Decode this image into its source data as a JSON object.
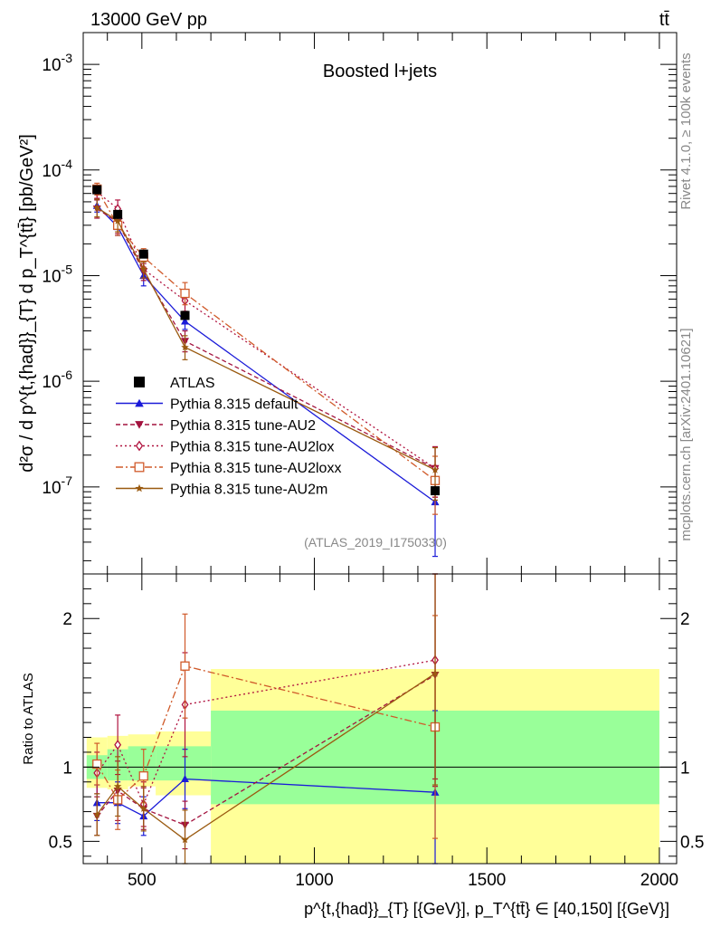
{
  "header": {
    "left": "13000 GeV pp",
    "right": "tt̄"
  },
  "side": {
    "rivet": "Rivet 4.1.0, ≥ 100k events",
    "mcplots": "mcplots.cern.ch [arXiv:2401.10621]"
  },
  "chart_data": [
    {
      "type": "scatter",
      "panel": "main",
      "title": "Boosted l+jets",
      "watermark": "(ATLAS_2019_I1750330)",
      "ylabel": "d²σ / d p^{t,{had}}_{T} d p_T^{tt̄} [pb/GeV²]",
      "yscale": "log",
      "ylim": [
        1.5e-08,
        0.002
      ],
      "xlim": [
        330,
        2050
      ],
      "ytick_labels": [
        "10^{-7}",
        "10^{-6}",
        "10^{-5}",
        "10^{-4}",
        "10^{-3}"
      ],
      "legend_position": "center-left",
      "series": [
        {
          "name": "ATLAS",
          "color": "#000000",
          "marker": "square-filled",
          "dash": "none",
          "x": [
            370,
            430,
            505,
            625,
            1350
          ],
          "y": [
            6.5e-05,
            3.8e-05,
            1.6e-05,
            4.2e-06,
            9.2e-08
          ],
          "err_lo": [
            0,
            0,
            0,
            0,
            0
          ],
          "err_hi": [
            0,
            0,
            0,
            0,
            0
          ]
        },
        {
          "name": "Pythia 8.315 default",
          "color": "#1a1ad8",
          "marker": "triangle-up-filled",
          "dash": "none",
          "x": [
            370,
            430,
            505,
            625,
            1350
          ],
          "y": [
            4.6e-05,
            2.9e-05,
            1e-05,
            3.7e-06,
            7.2e-08
          ],
          "err_lo": [
            6e-06,
            5e-06,
            2e-06,
            6e-07,
            5e-08
          ],
          "err_hi": [
            7e-06,
            5e-06,
            2e-06,
            8e-07,
            4e-08
          ]
        },
        {
          "name": "Pythia 8.315 tune-AU2",
          "color": "#a3123e",
          "marker": "triangle-down-filled",
          "dash": "5,3",
          "x": [
            370,
            430,
            505,
            625,
            1350
          ],
          "y": [
            4.3e-05,
            3.2e-05,
            1.1e-05,
            2.4e-06,
            1.5e-07
          ],
          "err_lo": [
            8e-06,
            7e-06,
            2e-06,
            5e-07,
            7e-08
          ],
          "err_hi": [
            9e-06,
            8e-06,
            2e-06,
            6e-07,
            9e-08
          ]
        },
        {
          "name": "Pythia 8.315 tune-AU2lox",
          "color": "#b0123e",
          "marker": "diamond-open",
          "dash": "2,3",
          "x": [
            370,
            430,
            505,
            625,
            1350
          ],
          "y": [
            6.2e-05,
            4.3e-05,
            1.15e-05,
            5.8e-06,
            1.5e-07
          ],
          "err_lo": [
            8e-06,
            8e-06,
            2e-06,
            1.2e-06,
            7e-08
          ],
          "err_hi": [
            9e-06,
            9e-06,
            3e-06,
            1.5e-06,
            9e-08
          ]
        },
        {
          "name": "Pythia 8.315 tune-AU2loxx",
          "color": "#d05a2a",
          "marker": "square-open",
          "dash": "8,3,2,3",
          "x": [
            370,
            430,
            505,
            625,
            1350
          ],
          "y": [
            6.6e-05,
            3e-05,
            1.5e-05,
            6.8e-06,
            1.15e-07
          ],
          "err_lo": [
            8e-06,
            6e-06,
            3e-06,
            1.5e-06,
            6e-08
          ],
          "err_hi": [
            9e-06,
            7e-06,
            3e-06,
            1.8e-06,
            8e-08
          ]
        },
        {
          "name": "Pythia 8.315 tune-AU2m",
          "color": "#9a5a10",
          "marker": "star-filled",
          "dash": "none",
          "x": [
            370,
            430,
            505,
            625,
            1350
          ],
          "y": [
            4.4e-05,
            3.3e-05,
            1.15e-05,
            2.1e-06,
            1.45e-07
          ],
          "err_lo": [
            8e-06,
            7e-06,
            2e-06,
            5e-07,
            7e-08
          ],
          "err_hi": [
            9e-06,
            8e-06,
            2e-06,
            6e-07,
            9e-08
          ]
        }
      ]
    },
    {
      "type": "scatter",
      "panel": "ratio",
      "ylabel": "Ratio to ATLAS",
      "xlabel": "p^{t,{had}}_{T} [{GeV}], p_T^{tt̄} ∈ [40,150] [{GeV}]",
      "ylim": [
        0.35,
        2.3
      ],
      "xlim": [
        330,
        2050
      ],
      "xticks": [
        500,
        1000,
        1500,
        2000
      ],
      "yticks": [
        0.5,
        1,
        2
      ],
      "bands": [
        {
          "x0": 340,
          "x1": 400,
          "green": [
            0.92,
            1.08
          ],
          "yellow": [
            0.86,
            1.2
          ]
        },
        {
          "x0": 400,
          "x1": 460,
          "green": [
            0.91,
            1.12
          ],
          "yellow": [
            0.85,
            1.21
          ]
        },
        {
          "x0": 460,
          "x1": 540,
          "green": [
            0.91,
            1.14
          ],
          "yellow": [
            0.87,
            1.22
          ]
        },
        {
          "x0": 540,
          "x1": 700,
          "green": [
            0.91,
            1.14
          ],
          "yellow": [
            0.81,
            1.24
          ]
        },
        {
          "x0": 700,
          "x1": 2000,
          "green": [
            0.75,
            1.38
          ],
          "yellow": [
            0.35,
            1.66
          ]
        }
      ],
      "series": [
        {
          "name": "Pythia 8.315 default",
          "color": "#1a1ad8",
          "marker": "triangle-up-filled",
          "dash": "none",
          "x": [
            370,
            430,
            505,
            625,
            1350
          ],
          "y": [
            0.76,
            0.76,
            0.67,
            0.92,
            0.83
          ],
          "err_lo": [
            0.12,
            0.14,
            0.13,
            0.2,
            0.55
          ],
          "err_hi": [
            0.12,
            0.14,
            0.13,
            0.2,
            0.55
          ]
        },
        {
          "name": "Pythia 8.315 tune-AU2",
          "color": "#a3123e",
          "marker": "triangle-down-filled",
          "dash": "5,3",
          "x": [
            370,
            430,
            505,
            625,
            1350
          ],
          "y": [
            0.67,
            0.84,
            0.72,
            0.61,
            1.62
          ],
          "err_lo": [
            0.13,
            0.2,
            0.14,
            0.16,
            0.75
          ],
          "err_hi": [
            0.13,
            0.2,
            0.14,
            0.16,
            0.75
          ]
        },
        {
          "name": "Pythia 8.315 tune-AU2lox",
          "color": "#b0123e",
          "marker": "diamond-open",
          "dash": "2,3",
          "x": [
            370,
            430,
            505,
            625,
            1350
          ],
          "y": [
            0.96,
            1.15,
            0.75,
            1.42,
            1.72
          ],
          "err_lo": [
            0.14,
            0.2,
            0.15,
            0.35,
            0.8
          ],
          "err_hi": [
            0.14,
            0.2,
            0.15,
            0.35,
            0.8
          ]
        },
        {
          "name": "Pythia 8.315 tune-AU2loxx",
          "color": "#d05a2a",
          "marker": "square-open",
          "dash": "8,3,2,3",
          "x": [
            370,
            430,
            505,
            625,
            1350
          ],
          "y": [
            1.02,
            0.78,
            0.94,
            1.68,
            1.27
          ],
          "err_lo": [
            0.14,
            0.2,
            0.18,
            0.35,
            0.75
          ],
          "err_hi": [
            0.14,
            0.2,
            0.18,
            0.35,
            0.75
          ]
        },
        {
          "name": "Pythia 8.315 tune-AU2m",
          "color": "#9a5a10",
          "marker": "star-filled",
          "dash": "none",
          "x": [
            370,
            430,
            505,
            625,
            1350
          ],
          "y": [
            0.68,
            0.87,
            0.72,
            0.51,
            1.63
          ],
          "err_lo": [
            0.14,
            0.2,
            0.15,
            0.2,
            0.75
          ],
          "err_hi": [
            0.14,
            0.2,
            0.15,
            0.2,
            0.75
          ]
        }
      ]
    }
  ]
}
